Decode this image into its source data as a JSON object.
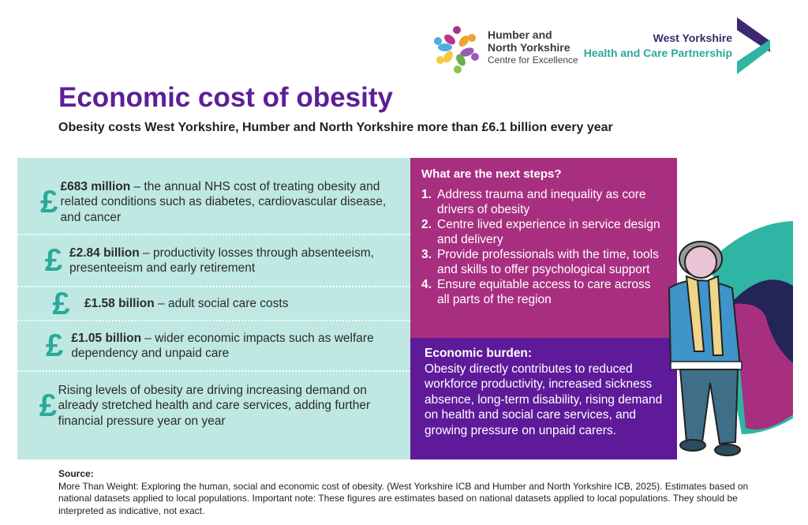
{
  "logos": {
    "hny": {
      "line1": "Humber and",
      "line2": "North Yorkshire",
      "line3": "Centre for Excellence"
    },
    "wy": {
      "line1": "West Yorkshire",
      "line2": "Health and Care Partnership"
    }
  },
  "title": "Economic cost of obesity",
  "subtitle": "Obesity costs West Yorkshire, Humber and North Yorkshire more than £6.1 billion every year",
  "costs": [
    {
      "icon": "pound-icon",
      "bold": "£683 million",
      "text": " – the annual NHS cost of treating obesity and related conditions such as diabetes, cardiovascular disease, and cancer"
    },
    {
      "icon": "pound-icon",
      "bold": "£2.84 billion",
      "text": " – productivity losses through absenteeism, presenteeism and early retirement"
    },
    {
      "icon": "pound-icon",
      "bold": "£1.58 billion",
      "text": " – adult social care costs"
    },
    {
      "icon": "pound-icon",
      "bold": "£1.05 billion",
      "text": " – wider economic impacts such as welfare dependency and unpaid care"
    },
    {
      "icon": "pound-icon",
      "bold": "",
      "text": "Rising levels of obesity are driving increasing demand on already stretched health and care services, adding further financial pressure year on year"
    }
  ],
  "next_steps": {
    "heading": "What are the next steps?",
    "items": [
      {
        "num": "1.",
        "text": "Address trauma and inequality as core drivers of obesity"
      },
      {
        "num": "2.",
        "text": "Centre lived experience in service design and delivery"
      },
      {
        "num": "3.",
        "text": "Provide professionals with the time, tools and skills to offer psychological support"
      },
      {
        "num": "4.",
        "text": "Ensure equitable access to care across all parts of the region"
      }
    ]
  },
  "burden": {
    "heading": "Economic burden:",
    "text": "Obesity directly contributes to reduced workforce productivity, increased sickness absence, long-term disability, rising demand on health and social care services, and growing pressure on unpaid carers."
  },
  "source": {
    "label": "Source:",
    "text": "More Than Weight: Exploring the human, social and economic cost of obesity. (West Yorkshire ICB and Humber and North Yorkshire ICB, 2025). Estimates based on national datasets applied to local populations. Important note: These figures are estimates based on national datasets applied to local populations. They should be interpreted as indicative, not exact."
  },
  "colors": {
    "teal": "#2aa99a",
    "light_teal": "#bfe8e2",
    "magenta": "#a82f80",
    "purple": "#5e1a99",
    "title_purple": "#5c1f96"
  }
}
